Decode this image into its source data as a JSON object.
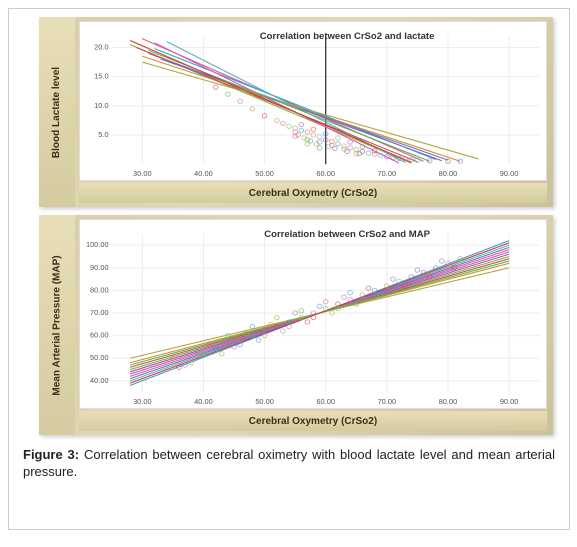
{
  "figure_label": "Figure 3:",
  "caption_text": "Correlation between cerebral oximetry with blood lactate level and mean arterial pressure.",
  "chart_top": {
    "type": "scatter-with-regression",
    "title": "Correlation between CrSo2 and lactate",
    "xlabel": "Cerebral Oxymetry (CrSo2)",
    "ylabel": "Blood Lactate level",
    "xlim": [
      25,
      95
    ],
    "ylim": [
      0,
      22
    ],
    "xticks": [
      30,
      40,
      50,
      60,
      70,
      80,
      90
    ],
    "yticks": [
      5,
      10,
      15,
      20
    ],
    "xtick_labels": [
      "30.00",
      "40.00",
      "50.00",
      "60.00",
      "70.00",
      "80.00",
      "90.00"
    ],
    "ytick_labels": [
      "5.0",
      "10.0",
      "15.0",
      "20.0"
    ],
    "reference_vertical_x": 60,
    "background_color": "#ffffff",
    "grid_color": "#eeeeee",
    "line_width": 1.1,
    "marker_size": 2.2,
    "marker_opacity": 0.6,
    "title_fontsize": 9,
    "label_fontsize": 10,
    "tick_fontsize": 7,
    "group_colors": [
      "#e55a9b",
      "#7fb83d",
      "#3c9dd0",
      "#d98b2e",
      "#58b8b0",
      "#9c5bb8",
      "#c94f4f",
      "#5a7fbf",
      "#b0a540",
      "#d05bc0",
      "#4fb85a",
      "#d83838"
    ],
    "lines": [
      {
        "color": "#e55a9b",
        "x1": 30,
        "y1": 21.5,
        "x2": 76,
        "y2": 0.5
      },
      {
        "color": "#7fb83d",
        "x1": 28,
        "y1": 20.5,
        "x2": 74,
        "y2": 0.2
      },
      {
        "color": "#3c9dd0",
        "x1": 32,
        "y1": 19.8,
        "x2": 78,
        "y2": 0.8
      },
      {
        "color": "#d98b2e",
        "x1": 30,
        "y1": 18.5,
        "x2": 82,
        "y2": 0.5
      },
      {
        "color": "#58b8b0",
        "x1": 34,
        "y1": 21.0,
        "x2": 73,
        "y2": 0.3
      },
      {
        "color": "#9c5bb8",
        "x1": 31,
        "y1": 19.0,
        "x2": 79,
        "y2": 0.6
      },
      {
        "color": "#c94f4f",
        "x1": 29,
        "y1": 20.0,
        "x2": 75,
        "y2": 0.4
      },
      {
        "color": "#5a7fbf",
        "x1": 33,
        "y1": 18.0,
        "x2": 80,
        "y2": 0.7
      },
      {
        "color": "#b0a540",
        "x1": 30,
        "y1": 17.5,
        "x2": 85,
        "y2": 0.9
      },
      {
        "color": "#d05bc0",
        "x1": 32,
        "y1": 20.8,
        "x2": 72,
        "y2": 0.2
      },
      {
        "color": "#4fb85a",
        "x1": 31,
        "y1": 19.5,
        "x2": 77,
        "y2": 0.5
      },
      {
        "color": "#d83838",
        "x1": 28,
        "y1": 21.2,
        "x2": 74,
        "y2": 0.3
      }
    ],
    "points": [
      {
        "x": 55,
        "y": 6.2,
        "c": "#7fb83d"
      },
      {
        "x": 56,
        "y": 5.8,
        "c": "#3c9dd0"
      },
      {
        "x": 57,
        "y": 5.5,
        "c": "#e55a9b"
      },
      {
        "x": 58,
        "y": 5.0,
        "c": "#d98b2e"
      },
      {
        "x": 59,
        "y": 4.7,
        "c": "#58b8b0"
      },
      {
        "x": 60,
        "y": 4.2,
        "c": "#9c5bb8"
      },
      {
        "x": 61,
        "y": 3.9,
        "c": "#c94f4f"
      },
      {
        "x": 62,
        "y": 3.5,
        "c": "#5a7fbf"
      },
      {
        "x": 63,
        "y": 3.1,
        "c": "#b0a540"
      },
      {
        "x": 64,
        "y": 2.8,
        "c": "#d05bc0"
      },
      {
        "x": 65,
        "y": 2.5,
        "c": "#4fb85a"
      },
      {
        "x": 66,
        "y": 2.2,
        "c": "#d83838"
      },
      {
        "x": 53,
        "y": 7.0,
        "c": "#e55a9b"
      },
      {
        "x": 54,
        "y": 6.5,
        "c": "#7fb83d"
      },
      {
        "x": 67,
        "y": 1.9,
        "c": "#3c9dd0"
      },
      {
        "x": 68,
        "y": 1.7,
        "c": "#d98b2e"
      },
      {
        "x": 69,
        "y": 1.5,
        "c": "#58b8b0"
      },
      {
        "x": 70,
        "y": 1.3,
        "c": "#9c5bb8"
      },
      {
        "x": 71,
        "y": 1.1,
        "c": "#c94f4f"
      },
      {
        "x": 72,
        "y": 1.0,
        "c": "#5a7fbf"
      },
      {
        "x": 52,
        "y": 7.5,
        "c": "#b0a540"
      },
      {
        "x": 73,
        "y": 0.9,
        "c": "#d05bc0"
      },
      {
        "x": 74,
        "y": 0.8,
        "c": "#4fb85a"
      },
      {
        "x": 50,
        "y": 8.3,
        "c": "#d83838"
      },
      {
        "x": 55,
        "y": 4.8,
        "c": "#e55a9b"
      },
      {
        "x": 57,
        "y": 4.2,
        "c": "#7fb83d"
      },
      {
        "x": 59,
        "y": 3.8,
        "c": "#3c9dd0"
      },
      {
        "x": 61,
        "y": 3.2,
        "c": "#d98b2e"
      },
      {
        "x": 63,
        "y": 2.6,
        "c": "#58b8b0"
      },
      {
        "x": 56,
        "y": 6.8,
        "c": "#9c5bb8"
      },
      {
        "x": 58,
        "y": 6.0,
        "c": "#c94f4f"
      },
      {
        "x": 60,
        "y": 5.2,
        "c": "#5a7fbf"
      },
      {
        "x": 62,
        "y": 4.5,
        "c": "#b0a540"
      },
      {
        "x": 64,
        "y": 3.8,
        "c": "#d05bc0"
      },
      {
        "x": 66,
        "y": 3.0,
        "c": "#4fb85a"
      },
      {
        "x": 68,
        "y": 2.3,
        "c": "#d83838"
      },
      {
        "x": 55,
        "y": 5.5,
        "c": "#e55a9b"
      },
      {
        "x": 57,
        "y": 3.5,
        "c": "#7fb83d"
      },
      {
        "x": 59,
        "y": 2.8,
        "c": "#3c9dd0"
      },
      {
        "x": 65,
        "y": 1.8,
        "c": "#d98b2e"
      },
      {
        "x": 75,
        "y": 0.7,
        "c": "#58b8b0"
      },
      {
        "x": 77,
        "y": 0.6,
        "c": "#9c5bb8"
      },
      {
        "x": 80,
        "y": 0.5,
        "c": "#c94f4f"
      },
      {
        "x": 82,
        "y": 0.5,
        "c": "#5a7fbf"
      },
      {
        "x": 48,
        "y": 9.5,
        "c": "#b0a540"
      },
      {
        "x": 46,
        "y": 10.8,
        "c": "#d05bc0"
      },
      {
        "x": 44,
        "y": 12.0,
        "c": "#4fb85a"
      },
      {
        "x": 42,
        "y": 13.2,
        "c": "#d83838"
      },
      {
        "x": 55.5,
        "y": 5.0,
        "c": "#e55a9b"
      },
      {
        "x": 56.5,
        "y": 4.5,
        "c": "#7fb83d"
      },
      {
        "x": 57.5,
        "y": 4.0,
        "c": "#3c9dd0"
      },
      {
        "x": 58.5,
        "y": 3.5,
        "c": "#d98b2e"
      },
      {
        "x": 60.5,
        "y": 3.0,
        "c": "#58b8b0"
      },
      {
        "x": 61.5,
        "y": 2.7,
        "c": "#9c5bb8"
      },
      {
        "x": 63.5,
        "y": 2.2,
        "c": "#c94f4f"
      },
      {
        "x": 65.5,
        "y": 1.8,
        "c": "#5a7fbf"
      }
    ]
  },
  "chart_bottom": {
    "type": "scatter-with-regression",
    "title": "Correlation between CrSo2 and MAP",
    "xlabel": "Cerebral Oxymetry (CrSo2)",
    "ylabel": "Mean Arterial Pressure (MAP)",
    "xlim": [
      25,
      95
    ],
    "ylim": [
      35,
      105
    ],
    "xticks": [
      30,
      40,
      50,
      60,
      70,
      80,
      90
    ],
    "yticks": [
      40,
      50,
      60,
      70,
      80,
      90,
      100
    ],
    "xtick_labels": [
      "30.00",
      "40.00",
      "50.00",
      "60.00",
      "70.00",
      "80.00",
      "90.00"
    ],
    "ytick_labels": [
      "40.00",
      "50.00",
      "60.00",
      "70.00",
      "80.00",
      "90.00",
      "100.00"
    ],
    "background_color": "#ffffff",
    "grid_color": "#eeeeee",
    "line_width": 1.1,
    "marker_size": 2.2,
    "marker_opacity": 0.6,
    "title_fontsize": 9,
    "label_fontsize": 10,
    "tick_fontsize": 7,
    "group_colors": [
      "#e55a9b",
      "#7fb83d",
      "#3c9dd0",
      "#d98b2e",
      "#58b8b0",
      "#9c5bb8",
      "#c94f4f",
      "#5a7fbf",
      "#b0a540",
      "#d05bc0",
      "#4fb85a",
      "#d83838"
    ],
    "lines": [
      {
        "color": "#e55a9b",
        "x1": 28,
        "y1": 42,
        "x2": 90,
        "y2": 98
      },
      {
        "color": "#7fb83d",
        "x1": 28,
        "y1": 45,
        "x2": 90,
        "y2": 95
      },
      {
        "color": "#3c9dd0",
        "x1": 28,
        "y1": 38,
        "x2": 90,
        "y2": 102
      },
      {
        "color": "#d98b2e",
        "x1": 28,
        "y1": 48,
        "x2": 90,
        "y2": 92
      },
      {
        "color": "#58b8b0",
        "x1": 28,
        "y1": 40,
        "x2": 90,
        "y2": 100
      },
      {
        "color": "#9c5bb8",
        "x1": 28,
        "y1": 44,
        "x2": 90,
        "y2": 96
      },
      {
        "color": "#c94f4f",
        "x1": 28,
        "y1": 46,
        "x2": 90,
        "y2": 94
      },
      {
        "color": "#5a7fbf",
        "x1": 28,
        "y1": 41,
        "x2": 90,
        "y2": 99
      },
      {
        "color": "#b0a540",
        "x1": 28,
        "y1": 50,
        "x2": 90,
        "y2": 90
      },
      {
        "color": "#d05bc0",
        "x1": 28,
        "y1": 43,
        "x2": 90,
        "y2": 97
      },
      {
        "color": "#4fb85a",
        "x1": 28,
        "y1": 47,
        "x2": 90,
        "y2": 93
      },
      {
        "color": "#d83838",
        "x1": 28,
        "y1": 39,
        "x2": 90,
        "y2": 101
      }
    ],
    "points": [
      {
        "x": 40,
        "y": 52,
        "c": "#7fb83d"
      },
      {
        "x": 42,
        "y": 54,
        "c": "#3c9dd0"
      },
      {
        "x": 44,
        "y": 56,
        "c": "#e55a9b"
      },
      {
        "x": 46,
        "y": 58,
        "c": "#d98b2e"
      },
      {
        "x": 48,
        "y": 60,
        "c": "#58b8b0"
      },
      {
        "x": 50,
        "y": 62,
        "c": "#9c5bb8"
      },
      {
        "x": 52,
        "y": 64,
        "c": "#c94f4f"
      },
      {
        "x": 54,
        "y": 66,
        "c": "#5a7fbf"
      },
      {
        "x": 56,
        "y": 68,
        "c": "#b0a540"
      },
      {
        "x": 58,
        "y": 70,
        "c": "#d05bc0"
      },
      {
        "x": 60,
        "y": 72,
        "c": "#4fb85a"
      },
      {
        "x": 62,
        "y": 74,
        "c": "#d83838"
      },
      {
        "x": 64,
        "y": 76,
        "c": "#e55a9b"
      },
      {
        "x": 66,
        "y": 78,
        "c": "#7fb83d"
      },
      {
        "x": 68,
        "y": 80,
        "c": "#3c9dd0"
      },
      {
        "x": 70,
        "y": 82,
        "c": "#d98b2e"
      },
      {
        "x": 72,
        "y": 84,
        "c": "#58b8b0"
      },
      {
        "x": 74,
        "y": 86,
        "c": "#9c5bb8"
      },
      {
        "x": 76,
        "y": 88,
        "c": "#c94f4f"
      },
      {
        "x": 78,
        "y": 90,
        "c": "#5a7fbf"
      },
      {
        "x": 38,
        "y": 48,
        "c": "#b0a540"
      },
      {
        "x": 80,
        "y": 92,
        "c": "#d05bc0"
      },
      {
        "x": 82,
        "y": 94,
        "c": "#4fb85a"
      },
      {
        "x": 36,
        "y": 46,
        "c": "#d83838"
      },
      {
        "x": 45,
        "y": 55,
        "c": "#e55a9b"
      },
      {
        "x": 47,
        "y": 61,
        "c": "#7fb83d"
      },
      {
        "x": 49,
        "y": 58,
        "c": "#3c9dd0"
      },
      {
        "x": 51,
        "y": 65,
        "c": "#d98b2e"
      },
      {
        "x": 53,
        "y": 62,
        "c": "#58b8b0"
      },
      {
        "x": 55,
        "y": 70,
        "c": "#9c5bb8"
      },
      {
        "x": 57,
        "y": 66,
        "c": "#c94f4f"
      },
      {
        "x": 59,
        "y": 73,
        "c": "#5a7fbf"
      },
      {
        "x": 61,
        "y": 70,
        "c": "#b0a540"
      },
      {
        "x": 63,
        "y": 77,
        "c": "#d05bc0"
      },
      {
        "x": 65,
        "y": 74,
        "c": "#4fb85a"
      },
      {
        "x": 67,
        "y": 81,
        "c": "#d83838"
      },
      {
        "x": 41,
        "y": 56,
        "c": "#e55a9b"
      },
      {
        "x": 43,
        "y": 52,
        "c": "#7fb83d"
      },
      {
        "x": 48,
        "y": 64,
        "c": "#3c9dd0"
      },
      {
        "x": 50,
        "y": 60,
        "c": "#d98b2e"
      },
      {
        "x": 69,
        "y": 78,
        "c": "#58b8b0"
      },
      {
        "x": 71,
        "y": 85,
        "c": "#9c5bb8"
      },
      {
        "x": 73,
        "y": 82,
        "c": "#c94f4f"
      },
      {
        "x": 75,
        "y": 89,
        "c": "#5a7fbf"
      },
      {
        "x": 52,
        "y": 68,
        "c": "#b0a540"
      },
      {
        "x": 54,
        "y": 64,
        "c": "#d05bc0"
      },
      {
        "x": 56,
        "y": 71,
        "c": "#4fb85a"
      },
      {
        "x": 58,
        "y": 68,
        "c": "#d83838"
      },
      {
        "x": 60,
        "y": 75,
        "c": "#e55a9b"
      },
      {
        "x": 62,
        "y": 72,
        "c": "#7fb83d"
      },
      {
        "x": 64,
        "y": 79,
        "c": "#3c9dd0"
      },
      {
        "x": 66,
        "y": 76,
        "c": "#d98b2e"
      },
      {
        "x": 44,
        "y": 60,
        "c": "#58b8b0"
      },
      {
        "x": 46,
        "y": 56,
        "c": "#9c5bb8"
      },
      {
        "x": 77,
        "y": 86,
        "c": "#c94f4f"
      },
      {
        "x": 79,
        "y": 93,
        "c": "#5a7fbf"
      },
      {
        "x": 35,
        "y": 50,
        "c": "#b0a540"
      },
      {
        "x": 37,
        "y": 47,
        "c": "#d05bc0"
      },
      {
        "x": 39,
        "y": 53,
        "c": "#4fb85a"
      },
      {
        "x": 81,
        "y": 90,
        "c": "#d83838"
      }
    ]
  }
}
